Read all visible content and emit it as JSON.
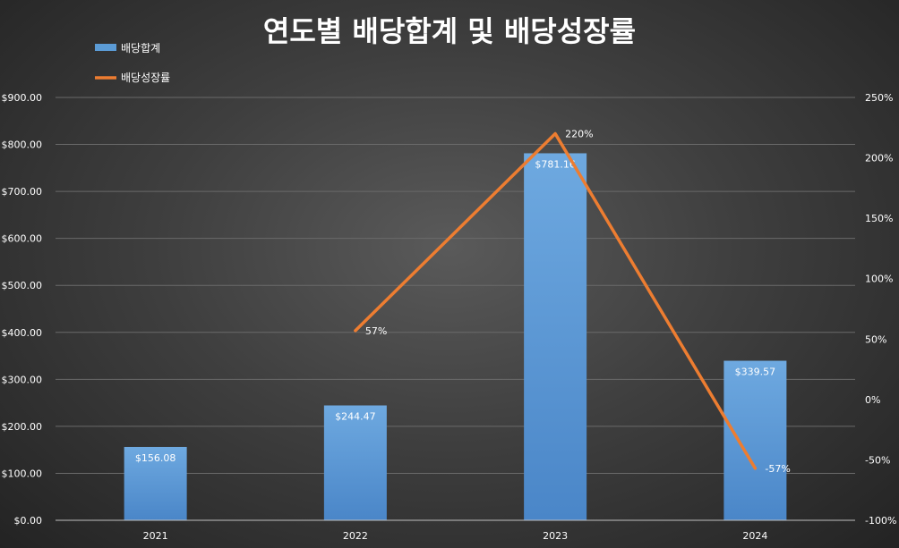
{
  "chart_data": {
    "type": "bar",
    "title": "연도별 배당합계 및 배당성장률",
    "categories": [
      "2021",
      "2022",
      "2023",
      "2024"
    ],
    "series": [
      {
        "name": "배당합계",
        "type": "bar",
        "axis": "left",
        "values": [
          156.08,
          244.47,
          781.16,
          339.57
        ],
        "labels": [
          "$156.08",
          "$244.47",
          "$781.16",
          "$339.57"
        ]
      },
      {
        "name": "배당성장률",
        "type": "line",
        "axis": "right",
        "values": [
          null,
          57,
          220,
          -57
        ],
        "labels": [
          "",
          "57%",
          "220%",
          "-57%"
        ]
      }
    ],
    "y_left": {
      "min": 0,
      "max": 900,
      "ticks": [
        0,
        100,
        200,
        300,
        400,
        500,
        600,
        700,
        800,
        900
      ],
      "tick_labels": [
        "$0.00",
        "$100.00",
        "$200.00",
        "$300.00",
        "$400.00",
        "$500.00",
        "$600.00",
        "$700.00",
        "$800.00",
        "$900.00"
      ]
    },
    "y_right": {
      "min": -100,
      "max": 250,
      "ticks": [
        -100,
        -50,
        0,
        50,
        100,
        150,
        200,
        250
      ],
      "tick_labels": [
        "-100%",
        "-50%",
        "0%",
        "50%",
        "100%",
        "150%",
        "200%",
        "250%"
      ]
    },
    "grid": true,
    "legend_position": "top-left",
    "colors": {
      "bar": "#5b9bd5",
      "line": "#ed7d31"
    }
  }
}
